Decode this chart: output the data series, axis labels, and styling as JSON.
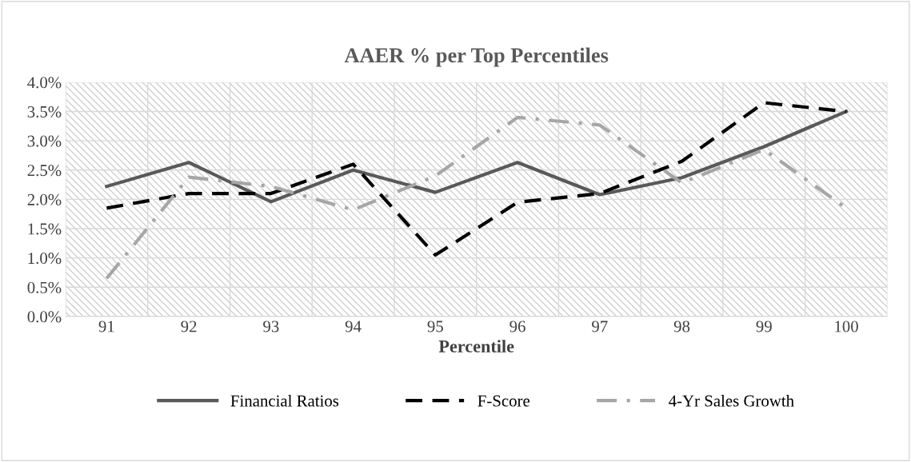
{
  "chart_data": {
    "type": "line",
    "title": "AAER % per Top Percentiles",
    "xlabel": "Percentile",
    "categories": [
      "91",
      "92",
      "93",
      "94",
      "95",
      "96",
      "97",
      "98",
      "99",
      "100"
    ],
    "series": [
      {
        "name": "Financial Ratios",
        "color": "#595959",
        "line_style": "solid",
        "values": [
          2.22,
          2.63,
          1.96,
          2.5,
          2.12,
          2.63,
          2.08,
          2.37,
          2.9,
          3.5
        ]
      },
      {
        "name": "F-Score",
        "color": "#000000",
        "line_style": "dashed",
        "values": [
          1.85,
          2.1,
          2.1,
          2.6,
          1.05,
          1.95,
          2.1,
          2.65,
          3.65,
          3.5
        ]
      },
      {
        "name": "4-Yr Sales Growth",
        "color": "#a6a6a6",
        "line_style": "dashdot",
        "values": [
          0.65,
          2.38,
          2.22,
          1.82,
          2.4,
          3.4,
          3.27,
          2.28,
          2.85,
          1.85
        ]
      }
    ],
    "ylim": [
      0,
      4
    ],
    "yticks": [
      {
        "value": 0,
        "label": "0.0%"
      },
      {
        "value": 0.5,
        "label": "0.5%"
      },
      {
        "value": 1,
        "label": "1.0%"
      },
      {
        "value": 1.5,
        "label": "1.5%"
      },
      {
        "value": 2,
        "label": "2.0%"
      },
      {
        "value": 2.5,
        "label": "2.5%"
      },
      {
        "value": 3,
        "label": "3.0%"
      },
      {
        "value": 3.5,
        "label": "3.5%"
      },
      {
        "value": 4,
        "label": "4.0%"
      }
    ],
    "grid": true,
    "legend": "bottom",
    "marker": "none"
  }
}
